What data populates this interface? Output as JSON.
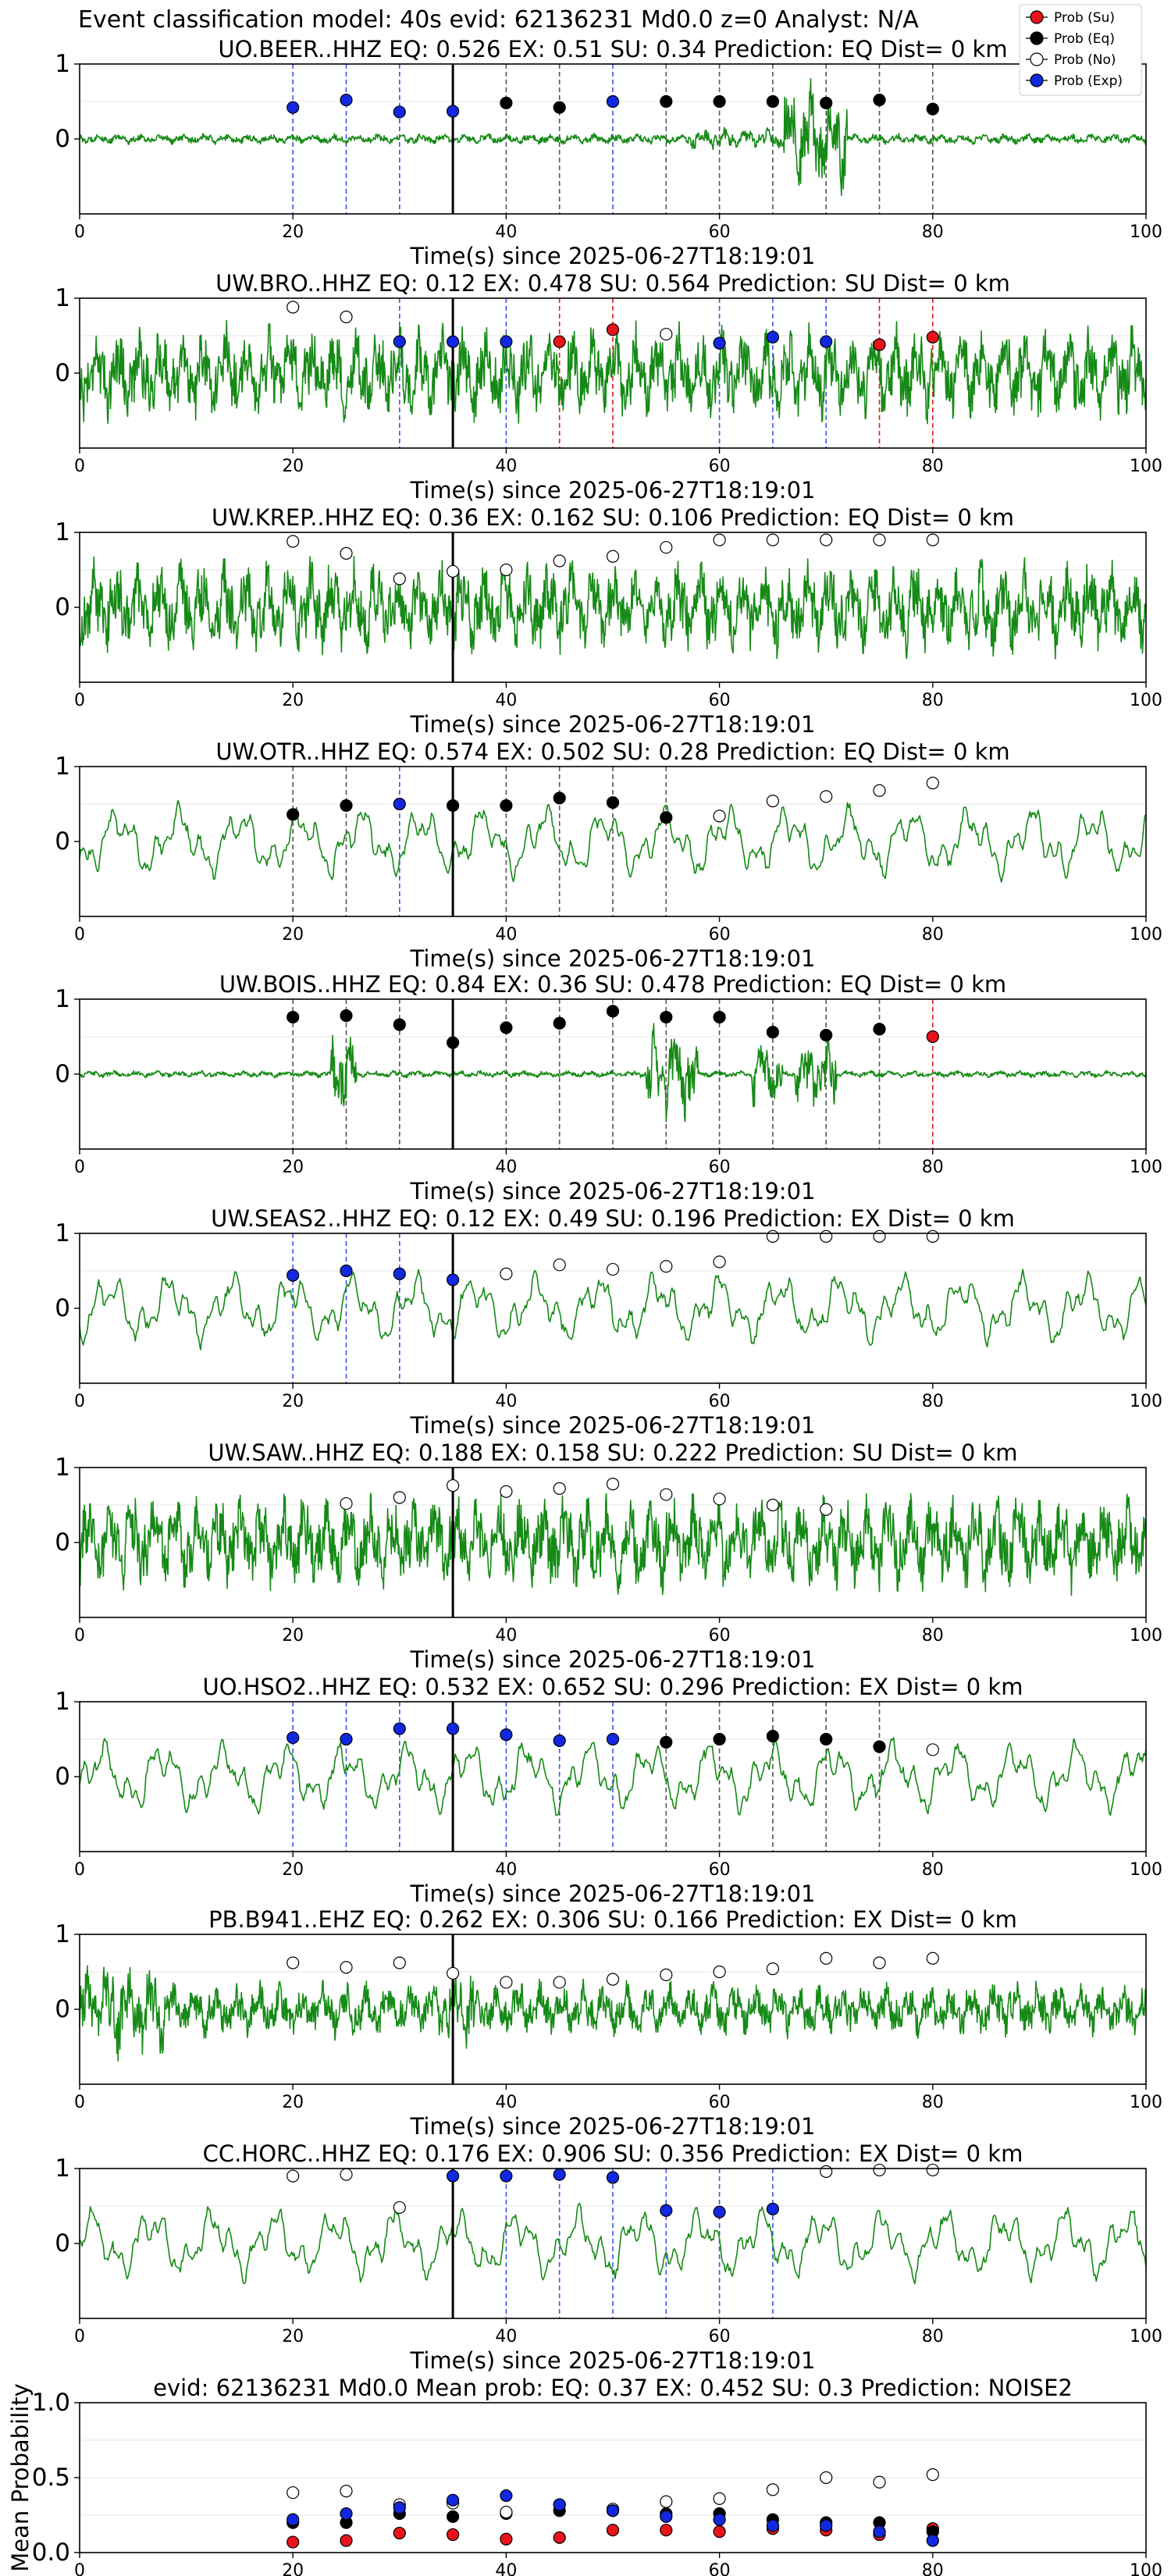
{
  "title": "Event classification model: 40s evid: 62136231 Md0.0 z=0 Analyst: N/A",
  "legend_labels": [
    "Prob (Su)",
    "Prob (Eq)",
    "Prob (No)",
    "Prob (Exp)"
  ],
  "colors": {
    "su": "#e8141a",
    "eq": "#000000",
    "no": "#ffffff",
    "exp": "#1028e0",
    "trace": "#168a16",
    "event_line": "#000000"
  },
  "chart_data": [
    {
      "type": "line",
      "title": "UO.BEER..HHZ   EQ: 0.526  EX: 0.51  SU: 0.34   Prediction: EQ    Dist= 0 km",
      "xlabel": "Time(s) since 2025-06-27T18:19:01",
      "ylabel": "",
      "xlim": [
        0,
        100
      ],
      "ylim": [
        -1,
        1
      ],
      "xticks": [
        0,
        20,
        40,
        60,
        80,
        100
      ],
      "yticks": [
        0,
        1
      ],
      "event_time": 35,
      "trace_style": "bursty",
      "legend": "top-right",
      "points": [
        {
          "x": 20,
          "y": 0.42,
          "c": "exp"
        },
        {
          "x": 25,
          "y": 0.52,
          "c": "exp"
        },
        {
          "x": 30,
          "y": 0.36,
          "c": "exp"
        },
        {
          "x": 35,
          "y": 0.37,
          "c": "exp"
        },
        {
          "x": 40,
          "y": 0.48,
          "c": "eq"
        },
        {
          "x": 45,
          "y": 0.42,
          "c": "eq"
        },
        {
          "x": 50,
          "y": 0.5,
          "c": "exp"
        },
        {
          "x": 55,
          "y": 0.5,
          "c": "eq"
        },
        {
          "x": 60,
          "y": 0.5,
          "c": "eq"
        },
        {
          "x": 65,
          "y": 0.5,
          "c": "eq"
        },
        {
          "x": 70,
          "y": 0.48,
          "c": "eq"
        },
        {
          "x": 75,
          "y": 0.52,
          "c": "eq"
        },
        {
          "x": 80,
          "y": 0.4,
          "c": "eq"
        }
      ]
    },
    {
      "type": "line",
      "title": "UW.BRO..HHZ   EQ: 0.12  EX: 0.478  SU: 0.564   Prediction: SU    Dist= 0 km",
      "xlabel": "Time(s) since 2025-06-27T18:19:01",
      "ylabel": "",
      "xlim": [
        0,
        100
      ],
      "ylim": [
        -1,
        1
      ],
      "xticks": [
        0,
        20,
        40,
        60,
        80,
        100
      ],
      "yticks": [
        0,
        1
      ],
      "event_time": 35,
      "trace_style": "noisy",
      "legend": "top-right",
      "points": [
        {
          "x": 20,
          "y": 0.88,
          "c": "no"
        },
        {
          "x": 25,
          "y": 0.75,
          "c": "no"
        },
        {
          "x": 30,
          "y": 0.42,
          "c": "exp"
        },
        {
          "x": 35,
          "y": 0.42,
          "c": "exp"
        },
        {
          "x": 40,
          "y": 0.42,
          "c": "exp"
        },
        {
          "x": 45,
          "y": 0.42,
          "c": "su"
        },
        {
          "x": 50,
          "y": 0.58,
          "c": "su"
        },
        {
          "x": 55,
          "y": 0.52,
          "c": "no"
        },
        {
          "x": 60,
          "y": 0.4,
          "c": "exp"
        },
        {
          "x": 65,
          "y": 0.48,
          "c": "exp"
        },
        {
          "x": 70,
          "y": 0.42,
          "c": "exp"
        },
        {
          "x": 75,
          "y": 0.38,
          "c": "su"
        },
        {
          "x": 80,
          "y": 0.48,
          "c": "su"
        }
      ]
    },
    {
      "type": "line",
      "title": "UW.KREP..HHZ   EQ: 0.36  EX: 0.162  SU: 0.106   Prediction: EQ    Dist= 0 km",
      "xlabel": "Time(s) since 2025-06-27T18:19:01",
      "ylabel": "",
      "xlim": [
        0,
        100
      ],
      "ylim": [
        -1,
        1
      ],
      "xticks": [
        0,
        20,
        40,
        60,
        80,
        100
      ],
      "yticks": [
        0,
        1
      ],
      "event_time": 35,
      "trace_style": "noisy",
      "legend": "top-right",
      "points": [
        {
          "x": 20,
          "y": 0.88,
          "c": "no"
        },
        {
          "x": 25,
          "y": 0.72,
          "c": "no"
        },
        {
          "x": 30,
          "y": 0.38,
          "c": "no"
        },
        {
          "x": 35,
          "y": 0.48,
          "c": "no"
        },
        {
          "x": 40,
          "y": 0.5,
          "c": "no"
        },
        {
          "x": 45,
          "y": 0.62,
          "c": "no"
        },
        {
          "x": 50,
          "y": 0.68,
          "c": "no"
        },
        {
          "x": 55,
          "y": 0.8,
          "c": "no"
        },
        {
          "x": 60,
          "y": 0.9,
          "c": "no"
        },
        {
          "x": 65,
          "y": 0.9,
          "c": "no"
        },
        {
          "x": 70,
          "y": 0.9,
          "c": "no"
        },
        {
          "x": 75,
          "y": 0.9,
          "c": "no"
        },
        {
          "x": 80,
          "y": 0.9,
          "c": "no"
        }
      ]
    },
    {
      "type": "line",
      "title": "UW.OTR..HHZ   EQ: 0.574  EX: 0.502  SU: 0.28   Prediction: EQ    Dist= 0 km",
      "xlabel": "Time(s) since 2025-06-27T18:19:01",
      "ylabel": "",
      "xlim": [
        0,
        100
      ],
      "ylim": [
        -1,
        1
      ],
      "xticks": [
        0,
        20,
        40,
        60,
        80,
        100
      ],
      "yticks": [
        0,
        1
      ],
      "event_time": 35,
      "trace_style": "smooth",
      "legend": "top-right",
      "points": [
        {
          "x": 20,
          "y": 0.36,
          "c": "eq"
        },
        {
          "x": 25,
          "y": 0.48,
          "c": "eq"
        },
        {
          "x": 30,
          "y": 0.5,
          "c": "exp"
        },
        {
          "x": 35,
          "y": 0.48,
          "c": "eq"
        },
        {
          "x": 40,
          "y": 0.48,
          "c": "eq"
        },
        {
          "x": 45,
          "y": 0.58,
          "c": "eq"
        },
        {
          "x": 50,
          "y": 0.52,
          "c": "eq"
        },
        {
          "x": 55,
          "y": 0.32,
          "c": "eq"
        },
        {
          "x": 60,
          "y": 0.34,
          "c": "no"
        },
        {
          "x": 65,
          "y": 0.54,
          "c": "no"
        },
        {
          "x": 70,
          "y": 0.6,
          "c": "no"
        },
        {
          "x": 75,
          "y": 0.68,
          "c": "no"
        },
        {
          "x": 80,
          "y": 0.78,
          "c": "no"
        }
      ]
    },
    {
      "type": "line",
      "title": "UW.BOIS..HHZ   EQ: 0.84  EX: 0.36  SU: 0.478   Prediction: EQ    Dist= 0 km",
      "xlabel": "Time(s) since 2025-06-27T18:19:01",
      "ylabel": "",
      "xlim": [
        0,
        100
      ],
      "ylim": [
        -1,
        1
      ],
      "xticks": [
        0,
        20,
        40,
        60,
        80,
        100
      ],
      "yticks": [
        0,
        1
      ],
      "event_time": 35,
      "trace_style": "quiet",
      "legend": "top-right",
      "points": [
        {
          "x": 20,
          "y": 0.76,
          "c": "eq"
        },
        {
          "x": 25,
          "y": 0.78,
          "c": "eq"
        },
        {
          "x": 30,
          "y": 0.66,
          "c": "eq"
        },
        {
          "x": 35,
          "y": 0.42,
          "c": "eq"
        },
        {
          "x": 40,
          "y": 0.62,
          "c": "eq"
        },
        {
          "x": 45,
          "y": 0.68,
          "c": "eq"
        },
        {
          "x": 50,
          "y": 0.84,
          "c": "eq"
        },
        {
          "x": 55,
          "y": 0.76,
          "c": "eq"
        },
        {
          "x": 60,
          "y": 0.76,
          "c": "eq"
        },
        {
          "x": 65,
          "y": 0.56,
          "c": "eq"
        },
        {
          "x": 70,
          "y": 0.52,
          "c": "eq"
        },
        {
          "x": 75,
          "y": 0.6,
          "c": "eq"
        },
        {
          "x": 80,
          "y": 0.5,
          "c": "su"
        }
      ]
    },
    {
      "type": "line",
      "title": "UW.SEAS2..HHZ   EQ: 0.12  EX: 0.49  SU: 0.196   Prediction: EX    Dist= 0 km",
      "xlabel": "Time(s) since 2025-06-27T18:19:01",
      "ylabel": "",
      "xlim": [
        0,
        100
      ],
      "ylim": [
        -1,
        1
      ],
      "xticks": [
        0,
        20,
        40,
        60,
        80,
        100
      ],
      "yticks": [
        0,
        1
      ],
      "event_time": 35,
      "trace_style": "smooth",
      "legend": "top-right",
      "points": [
        {
          "x": 20,
          "y": 0.44,
          "c": "exp"
        },
        {
          "x": 25,
          "y": 0.5,
          "c": "exp"
        },
        {
          "x": 30,
          "y": 0.46,
          "c": "exp"
        },
        {
          "x": 35,
          "y": 0.38,
          "c": "exp"
        },
        {
          "x": 40,
          "y": 0.46,
          "c": "no"
        },
        {
          "x": 45,
          "y": 0.58,
          "c": "no"
        },
        {
          "x": 50,
          "y": 0.52,
          "c": "no"
        },
        {
          "x": 55,
          "y": 0.56,
          "c": "no"
        },
        {
          "x": 60,
          "y": 0.62,
          "c": "no"
        },
        {
          "x": 65,
          "y": 0.96,
          "c": "no"
        },
        {
          "x": 70,
          "y": 0.96,
          "c": "no"
        },
        {
          "x": 75,
          "y": 0.96,
          "c": "no"
        },
        {
          "x": 80,
          "y": 0.96,
          "c": "no"
        }
      ]
    },
    {
      "type": "line",
      "title": "UW.SAW..HHZ   EQ: 0.188  EX: 0.158  SU: 0.222   Prediction: SU    Dist= 0 km",
      "xlabel": "Time(s) since 2025-06-27T18:19:01",
      "ylabel": "",
      "xlim": [
        0,
        100
      ],
      "ylim": [
        -1,
        1
      ],
      "xticks": [
        0,
        20,
        40,
        60,
        80,
        100
      ],
      "yticks": [
        0,
        1
      ],
      "event_time": 35,
      "trace_style": "noisy",
      "legend": "top-right",
      "points": [
        {
          "x": 25,
          "y": 0.52,
          "c": "no"
        },
        {
          "x": 30,
          "y": 0.6,
          "c": "no"
        },
        {
          "x": 35,
          "y": 0.76,
          "c": "no"
        },
        {
          "x": 40,
          "y": 0.68,
          "c": "no"
        },
        {
          "x": 45,
          "y": 0.72,
          "c": "no"
        },
        {
          "x": 50,
          "y": 0.78,
          "c": "no"
        },
        {
          "x": 55,
          "y": 0.64,
          "c": "no"
        },
        {
          "x": 60,
          "y": 0.58,
          "c": "no"
        },
        {
          "x": 65,
          "y": 0.5,
          "c": "no"
        },
        {
          "x": 70,
          "y": 0.44,
          "c": "no"
        }
      ]
    },
    {
      "type": "line",
      "title": "UO.HSO2..HHZ   EQ: 0.532  EX: 0.652  SU: 0.296   Prediction: EX    Dist= 0 km",
      "xlabel": "Time(s) since 2025-06-27T18:19:01",
      "ylabel": "",
      "xlim": [
        0,
        100
      ],
      "ylim": [
        -1,
        1
      ],
      "xticks": [
        0,
        20,
        40,
        60,
        80,
        100
      ],
      "yticks": [
        0,
        1
      ],
      "event_time": 35,
      "trace_style": "smooth",
      "legend": "top-right",
      "points": [
        {
          "x": 20,
          "y": 0.52,
          "c": "exp"
        },
        {
          "x": 25,
          "y": 0.5,
          "c": "exp"
        },
        {
          "x": 30,
          "y": 0.64,
          "c": "exp"
        },
        {
          "x": 35,
          "y": 0.64,
          "c": "exp"
        },
        {
          "x": 40,
          "y": 0.56,
          "c": "exp"
        },
        {
          "x": 45,
          "y": 0.48,
          "c": "exp"
        },
        {
          "x": 50,
          "y": 0.5,
          "c": "exp"
        },
        {
          "x": 55,
          "y": 0.46,
          "c": "eq"
        },
        {
          "x": 60,
          "y": 0.5,
          "c": "eq"
        },
        {
          "x": 65,
          "y": 0.54,
          "c": "eq"
        },
        {
          "x": 70,
          "y": 0.5,
          "c": "eq"
        },
        {
          "x": 75,
          "y": 0.4,
          "c": "eq"
        },
        {
          "x": 80,
          "y": 0.36,
          "c": "no"
        }
      ]
    },
    {
      "type": "line",
      "title": "PB.B941..EHZ   EQ: 0.262  EX: 0.306  SU: 0.166   Prediction: EX    Dist= 0 km",
      "xlabel": "Time(s) since 2025-06-27T18:19:01",
      "ylabel": "",
      "xlim": [
        0,
        100
      ],
      "ylim": [
        -1,
        1
      ],
      "xticks": [
        0,
        20,
        40,
        60,
        80,
        100
      ],
      "yticks": [
        0,
        1
      ],
      "event_time": 35,
      "trace_style": "dense",
      "legend": "top-right",
      "points": [
        {
          "x": 20,
          "y": 0.62,
          "c": "no"
        },
        {
          "x": 25,
          "y": 0.56,
          "c": "no"
        },
        {
          "x": 30,
          "y": 0.62,
          "c": "no"
        },
        {
          "x": 35,
          "y": 0.48,
          "c": "no"
        },
        {
          "x": 40,
          "y": 0.36,
          "c": "no"
        },
        {
          "x": 45,
          "y": 0.36,
          "c": "no"
        },
        {
          "x": 50,
          "y": 0.4,
          "c": "no"
        },
        {
          "x": 55,
          "y": 0.46,
          "c": "no"
        },
        {
          "x": 60,
          "y": 0.5,
          "c": "no"
        },
        {
          "x": 65,
          "y": 0.54,
          "c": "no"
        },
        {
          "x": 70,
          "y": 0.68,
          "c": "no"
        },
        {
          "x": 75,
          "y": 0.62,
          "c": "no"
        },
        {
          "x": 80,
          "y": 0.68,
          "c": "no"
        }
      ]
    },
    {
      "type": "line",
      "title": "CC.HORC..HHZ   EQ: 0.176  EX: 0.906  SU: 0.356   Prediction: EX    Dist= 0 km",
      "xlabel": "Time(s) since 2025-06-27T18:19:01",
      "ylabel": "",
      "xlim": [
        0,
        100
      ],
      "ylim": [
        -1,
        1
      ],
      "xticks": [
        0,
        20,
        40,
        60,
        80,
        100
      ],
      "yticks": [
        0,
        1
      ],
      "event_time": 35,
      "trace_style": "smooth",
      "legend": "top-right",
      "points": [
        {
          "x": 20,
          "y": 0.9,
          "c": "no"
        },
        {
          "x": 25,
          "y": 0.92,
          "c": "no"
        },
        {
          "x": 30,
          "y": 0.48,
          "c": "no"
        },
        {
          "x": 35,
          "y": 0.9,
          "c": "exp"
        },
        {
          "x": 40,
          "y": 0.9,
          "c": "exp"
        },
        {
          "x": 45,
          "y": 0.92,
          "c": "exp"
        },
        {
          "x": 50,
          "y": 0.88,
          "c": "exp"
        },
        {
          "x": 55,
          "y": 0.44,
          "c": "exp"
        },
        {
          "x": 60,
          "y": 0.42,
          "c": "exp"
        },
        {
          "x": 65,
          "y": 0.46,
          "c": "exp"
        },
        {
          "x": 70,
          "y": 0.96,
          "c": "no"
        },
        {
          "x": 75,
          "y": 0.98,
          "c": "no"
        },
        {
          "x": 80,
          "y": 0.98,
          "c": "no"
        }
      ]
    },
    {
      "type": "scatter",
      "title": "evid: 62136231  Md0.0   Mean prob:   EQ: 0.37  EX: 0.452  SU: 0.3   Prediction: NOISE2",
      "xlabel": "",
      "ylabel": "Mean Probability",
      "xlim": [
        0,
        100
      ],
      "ylim": [
        0,
        1
      ],
      "xticks": [
        0,
        20,
        40,
        60,
        80,
        100
      ],
      "yticks": [
        0.0,
        0.5,
        1.0
      ],
      "ytick_labels": [
        "0.0",
        "0.5",
        "1.0"
      ],
      "legend": "top-right",
      "series": [
        {
          "name": "Prob (Su)",
          "c": "su",
          "x": [
            20,
            25,
            30,
            35,
            40,
            45,
            50,
            55,
            60,
            65,
            70,
            75,
            80
          ],
          "y": [
            0.07,
            0.08,
            0.13,
            0.12,
            0.09,
            0.1,
            0.15,
            0.15,
            0.14,
            0.16,
            0.15,
            0.12,
            0.16
          ]
        },
        {
          "name": "Prob (Eq)",
          "c": "eq",
          "x": [
            20,
            25,
            30,
            35,
            40,
            45,
            50,
            55,
            60,
            65,
            70,
            75,
            80
          ],
          "y": [
            0.2,
            0.2,
            0.26,
            0.24,
            0.26,
            0.28,
            0.28,
            0.26,
            0.26,
            0.22,
            0.2,
            0.2,
            0.14
          ]
        },
        {
          "name": "Prob (No)",
          "c": "no",
          "x": [
            20,
            25,
            30,
            35,
            40,
            45,
            50,
            55,
            60,
            65,
            70,
            75,
            80
          ],
          "y": [
            0.4,
            0.41,
            0.32,
            0.33,
            0.27,
            0.32,
            0.29,
            0.34,
            0.36,
            0.42,
            0.5,
            0.47,
            0.52
          ]
        },
        {
          "name": "Prob (Exp)",
          "c": "exp",
          "x": [
            20,
            25,
            30,
            35,
            40,
            45,
            50,
            55,
            60,
            65,
            70,
            75,
            80
          ],
          "y": [
            0.22,
            0.26,
            0.3,
            0.35,
            0.38,
            0.32,
            0.28,
            0.24,
            0.22,
            0.18,
            0.18,
            0.14,
            0.08
          ]
        }
      ]
    }
  ]
}
